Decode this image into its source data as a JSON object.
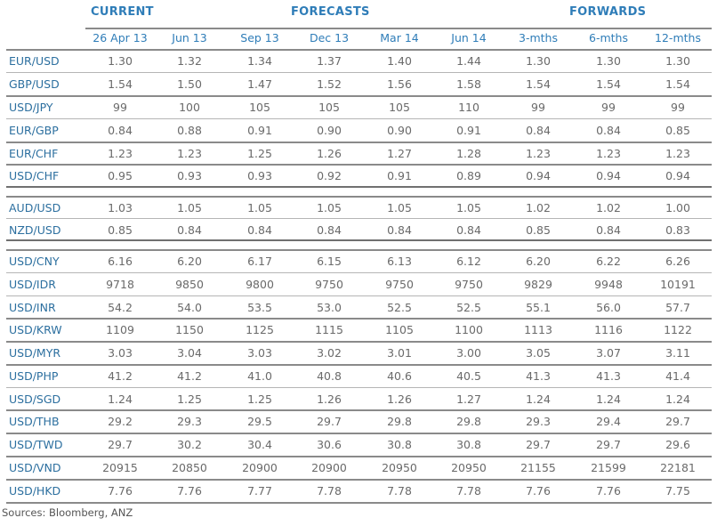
{
  "groups": {
    "current": "CURRENT",
    "forecasts": "FORECASTS",
    "forwards": "FORWARDS"
  },
  "columns": [
    "26 Apr 13",
    "Jun 13",
    "Sep 13",
    "Dec 13",
    "Mar 14",
    "Jun 14",
    "3-mths",
    "6-mths",
    "12-mths"
  ],
  "rows": [
    {
      "pair": "EUR/USD",
      "values": [
        "1.30",
        "1.32",
        "1.34",
        "1.37",
        "1.40",
        "1.44",
        "1.30",
        "1.30",
        "1.30"
      ]
    },
    {
      "pair": "GBP/USD",
      "values": [
        "1.54",
        "1.50",
        "1.47",
        "1.52",
        "1.56",
        "1.58",
        "1.54",
        "1.54",
        "1.54"
      ]
    },
    {
      "pair": "USD/JPY",
      "values": [
        "99",
        "100",
        "105",
        "105",
        "105",
        "110",
        "99",
        "99",
        "99"
      ]
    },
    {
      "pair": "EUR/GBP",
      "values": [
        "0.84",
        "0.88",
        "0.91",
        "0.90",
        "0.90",
        "0.91",
        "0.84",
        "0.84",
        "0.85"
      ]
    },
    {
      "pair": "EUR/CHF",
      "values": [
        "1.23",
        "1.23",
        "1.25",
        "1.26",
        "1.27",
        "1.28",
        "1.23",
        "1.23",
        "1.23"
      ]
    },
    {
      "pair": "USD/CHF",
      "values": [
        "0.95",
        "0.93",
        "0.93",
        "0.92",
        "0.91",
        "0.89",
        "0.94",
        "0.94",
        "0.94"
      ]
    },
    {
      "pair": "AUD/USD",
      "values": [
        "1.03",
        "1.05",
        "1.05",
        "1.05",
        "1.05",
        "1.05",
        "1.02",
        "1.02",
        "1.00"
      ]
    },
    {
      "pair": "NZD/USD",
      "values": [
        "0.85",
        "0.84",
        "0.84",
        "0.84",
        "0.84",
        "0.84",
        "0.85",
        "0.84",
        "0.83"
      ]
    },
    {
      "pair": "USD/CNY",
      "values": [
        "6.16",
        "6.20",
        "6.17",
        "6.15",
        "6.13",
        "6.12",
        "6.20",
        "6.22",
        "6.26"
      ]
    },
    {
      "pair": "USD/IDR",
      "values": [
        "9718",
        "9850",
        "9800",
        "9750",
        "9750",
        "9750",
        "9829",
        "9948",
        "10191"
      ]
    },
    {
      "pair": "USD/INR",
      "values": [
        "54.2",
        "54.0",
        "53.5",
        "53.0",
        "52.5",
        "52.5",
        "55.1",
        "56.0",
        "57.7"
      ]
    },
    {
      "pair": "USD/KRW",
      "values": [
        "1109",
        "1150",
        "1125",
        "1115",
        "1105",
        "1100",
        "1113",
        "1116",
        "1122"
      ]
    },
    {
      "pair": "USD/MYR",
      "values": [
        "3.03",
        "3.04",
        "3.03",
        "3.02",
        "3.01",
        "3.00",
        "3.05",
        "3.07",
        "3.11"
      ]
    },
    {
      "pair": "USD/PHP",
      "values": [
        "41.2",
        "41.2",
        "41.0",
        "40.8",
        "40.6",
        "40.5",
        "41.3",
        "41.3",
        "41.4"
      ]
    },
    {
      "pair": "USD/SGD",
      "values": [
        "1.24",
        "1.25",
        "1.25",
        "1.26",
        "1.26",
        "1.27",
        "1.24",
        "1.24",
        "1.24"
      ]
    },
    {
      "pair": "USD/THB",
      "values": [
        "29.2",
        "29.3",
        "29.5",
        "29.7",
        "29.8",
        "29.8",
        "29.3",
        "29.4",
        "29.7"
      ]
    },
    {
      "pair": "USD/TWD",
      "values": [
        "29.7",
        "30.2",
        "30.4",
        "30.6",
        "30.8",
        "30.8",
        "29.7",
        "29.7",
        "29.6"
      ]
    },
    {
      "pair": "USD/VND",
      "values": [
        "20915",
        "20850",
        "20900",
        "20900",
        "20950",
        "20950",
        "21155",
        "21599",
        "22181"
      ]
    },
    {
      "pair": "USD/HKD",
      "values": [
        "7.76",
        "7.76",
        "7.77",
        "7.78",
        "7.78",
        "7.78",
        "7.76",
        "7.76",
        "7.75"
      ]
    }
  ],
  "source": "Sources: Bloomberg, ANZ"
}
